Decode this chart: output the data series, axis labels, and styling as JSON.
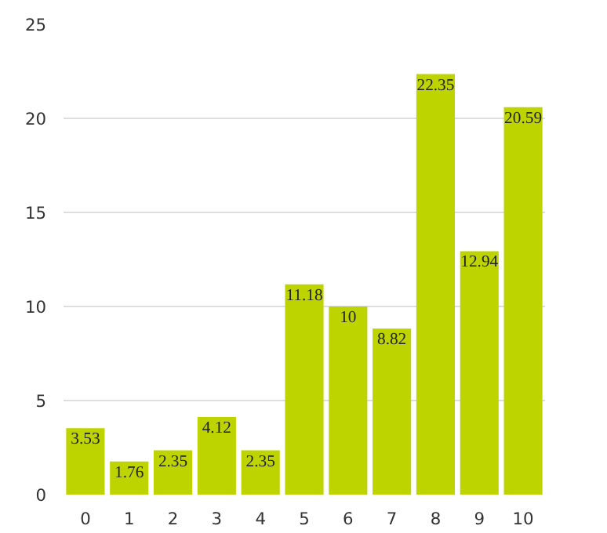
{
  "chart_data": {
    "type": "bar",
    "categories": [
      "0",
      "1",
      "2",
      "3",
      "4",
      "5",
      "6",
      "7",
      "8",
      "9",
      "10"
    ],
    "values": [
      3.53,
      1.76,
      2.35,
      4.12,
      2.35,
      11.18,
      10,
      8.82,
      22.35,
      12.94,
      20.59
    ],
    "color": "#bdd400",
    "ylim": [
      0,
      25
    ],
    "yticks": [
      0,
      5,
      10,
      15,
      20,
      25
    ],
    "grid": "y",
    "data_labels": true
  }
}
